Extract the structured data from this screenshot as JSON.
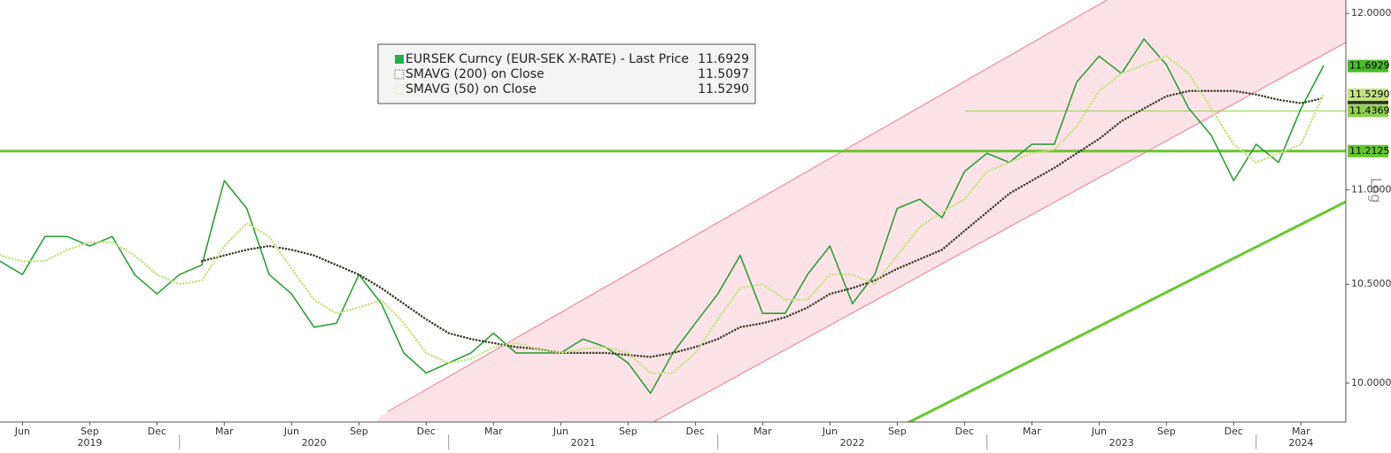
{
  "chart_data": {
    "type": "line",
    "log_scale": true,
    "scale_label": "Log",
    "x": [
      "2019-05",
      "2019-06",
      "2019-07",
      "2019-08",
      "2019-09",
      "2019-10",
      "2019-11",
      "2019-12",
      "2020-01",
      "2020-02",
      "2020-03",
      "2020-04",
      "2020-05",
      "2020-06",
      "2020-07",
      "2020-08",
      "2020-09",
      "2020-10",
      "2020-11",
      "2020-12",
      "2021-01",
      "2021-02",
      "2021-03",
      "2021-04",
      "2021-05",
      "2021-06",
      "2021-07",
      "2021-08",
      "2021-09",
      "2021-10",
      "2021-11",
      "2021-12",
      "2022-01",
      "2022-02",
      "2022-03",
      "2022-04",
      "2022-05",
      "2022-06",
      "2022-07",
      "2022-08",
      "2022-09",
      "2022-10",
      "2022-11",
      "2022-12",
      "2023-01",
      "2023-02",
      "2023-03",
      "2023-04",
      "2023-05",
      "2023-06",
      "2023-07",
      "2023-08",
      "2023-09",
      "2023-10",
      "2023-11",
      "2023-12",
      "2024-01",
      "2024-02",
      "2024-03",
      "2024-04"
    ],
    "xlim": [
      "2019-05",
      "2024-05"
    ],
    "xticks": [
      {
        "value": "2019-06",
        "label": "Jun"
      },
      {
        "value": "2019-09",
        "label": "Sep"
      },
      {
        "value": "2019-12",
        "label": "Dec"
      },
      {
        "value": "2020-03",
        "label": "Mar"
      },
      {
        "value": "2020-06",
        "label": "Jun"
      },
      {
        "value": "2020-09",
        "label": "Sep"
      },
      {
        "value": "2020-12",
        "label": "Dec"
      },
      {
        "value": "2021-03",
        "label": "Mar"
      },
      {
        "value": "2021-06",
        "label": "Jun"
      },
      {
        "value": "2021-09",
        "label": "Sep"
      },
      {
        "value": "2021-12",
        "label": "Dec"
      },
      {
        "value": "2022-03",
        "label": "Mar"
      },
      {
        "value": "2022-06",
        "label": "Jun"
      },
      {
        "value": "2022-09",
        "label": "Sep"
      },
      {
        "value": "2022-12",
        "label": "Dec"
      },
      {
        "value": "2023-03",
        "label": "Mar"
      },
      {
        "value": "2023-06",
        "label": "Jun"
      },
      {
        "value": "2023-09",
        "label": "Sep"
      },
      {
        "value": "2023-12",
        "label": "Dec"
      },
      {
        "value": "2024-03",
        "label": "Mar"
      }
    ],
    "years": [
      "2019",
      "2020",
      "2021",
      "2022",
      "2023",
      "2024"
    ],
    "ylim": [
      9.81,
      12.08
    ],
    "yticks": [
      {
        "value": 10,
        "label": "10.0000"
      },
      {
        "value": 10.5,
        "label": "10.5000"
      },
      {
        "value": 11,
        "label": "11.0000"
      },
      {
        "value": 12,
        "label": "12.0000"
      }
    ],
    "series": [
      {
        "name": "EURSEK Curncy (EUR-SEK X-RATE) - Last Price",
        "color": "#2e9e3a",
        "style": "solid",
        "legend_color": "#22b14c",
        "tag_color": "#4cbb2a",
        "tag_text_color": "#000000",
        "values": [
          10.62,
          10.55,
          10.75,
          10.75,
          10.7,
          10.75,
          10.55,
          10.45,
          10.55,
          10.6,
          11.05,
          10.9,
          10.55,
          10.45,
          10.28,
          10.3,
          10.55,
          10.4,
          10.15,
          10.05,
          10.1,
          10.15,
          10.25,
          10.15,
          10.15,
          10.15,
          10.22,
          10.18,
          10.1,
          9.95,
          10.15,
          10.3,
          10.45,
          10.65,
          10.35,
          10.35,
          10.55,
          10.7,
          10.4,
          10.55,
          10.9,
          10.95,
          10.85,
          11.1,
          11.2,
          11.15,
          11.25,
          11.25,
          11.6,
          11.75,
          11.65,
          11.85,
          11.7,
          11.45,
          11.3,
          11.05,
          11.25,
          11.15,
          11.45,
          11.6929
        ]
      },
      {
        "name": "SMAVG (200)  on Close",
        "color": "#3b3b28",
        "style": "dotted",
        "legend_color": "#3b3b28",
        "tag_color": "#2f3a1c",
        "tag_text_color": "#ffffff",
        "values": [
          null,
          null,
          null,
          null,
          null,
          null,
          null,
          null,
          null,
          10.62,
          10.65,
          10.68,
          10.7,
          10.68,
          10.65,
          10.6,
          10.55,
          10.48,
          10.4,
          10.32,
          10.25,
          10.22,
          10.2,
          10.18,
          10.17,
          10.15,
          10.15,
          10.15,
          10.14,
          10.13,
          10.15,
          10.18,
          10.22,
          10.28,
          10.3,
          10.33,
          10.38,
          10.45,
          10.48,
          10.52,
          10.58,
          10.63,
          10.68,
          10.78,
          10.88,
          10.98,
          11.05,
          11.12,
          11.2,
          11.28,
          11.38,
          11.45,
          11.52,
          11.55,
          11.55,
          11.55,
          11.53,
          11.5,
          11.48,
          11.5097
        ]
      },
      {
        "name": "SMAVG (50)  on Close",
        "color": "#c5e384",
        "style": "dotted",
        "legend_color": "#c5e384",
        "tag_color": "#c5e384",
        "tag_text_color": "#000000",
        "values": [
          10.65,
          10.62,
          10.62,
          10.68,
          10.72,
          10.72,
          10.65,
          10.55,
          10.5,
          10.52,
          10.7,
          10.82,
          10.75,
          10.58,
          10.42,
          10.35,
          10.38,
          10.42,
          10.3,
          10.15,
          10.1,
          10.12,
          10.18,
          10.2,
          10.17,
          10.15,
          10.17,
          10.18,
          10.15,
          10.05,
          10.05,
          10.15,
          10.32,
          10.48,
          10.5,
          10.42,
          10.42,
          10.55,
          10.55,
          10.5,
          10.65,
          10.8,
          10.88,
          10.95,
          11.1,
          11.15,
          11.2,
          11.22,
          11.35,
          11.55,
          11.65,
          11.7,
          11.75,
          11.65,
          11.45,
          11.25,
          11.15,
          11.2,
          11.25,
          11.529
        ],
        "value_labels": [
          null,
          null,
          null,
          null,
          null,
          null,
          null,
          null,
          null,
          null,
          null,
          null,
          null,
          null,
          null,
          null,
          null,
          null,
          null,
          null,
          null,
          null,
          null,
          null,
          null,
          null,
          null,
          null,
          null,
          null,
          null,
          null,
          null,
          null,
          null,
          null,
          null,
          null,
          null,
          null,
          null,
          null,
          null,
          null,
          null,
          null,
          null,
          null,
          null,
          null,
          null,
          null,
          null,
          null,
          null,
          null,
          null,
          null,
          null,
          "11.5290"
        ]
      }
    ],
    "hlines": [
      {
        "value": 11.2125,
        "color": "#66c62a"
      },
      {
        "value": 11.4369,
        "color": "#8fd04e"
      }
    ]
  }
}
